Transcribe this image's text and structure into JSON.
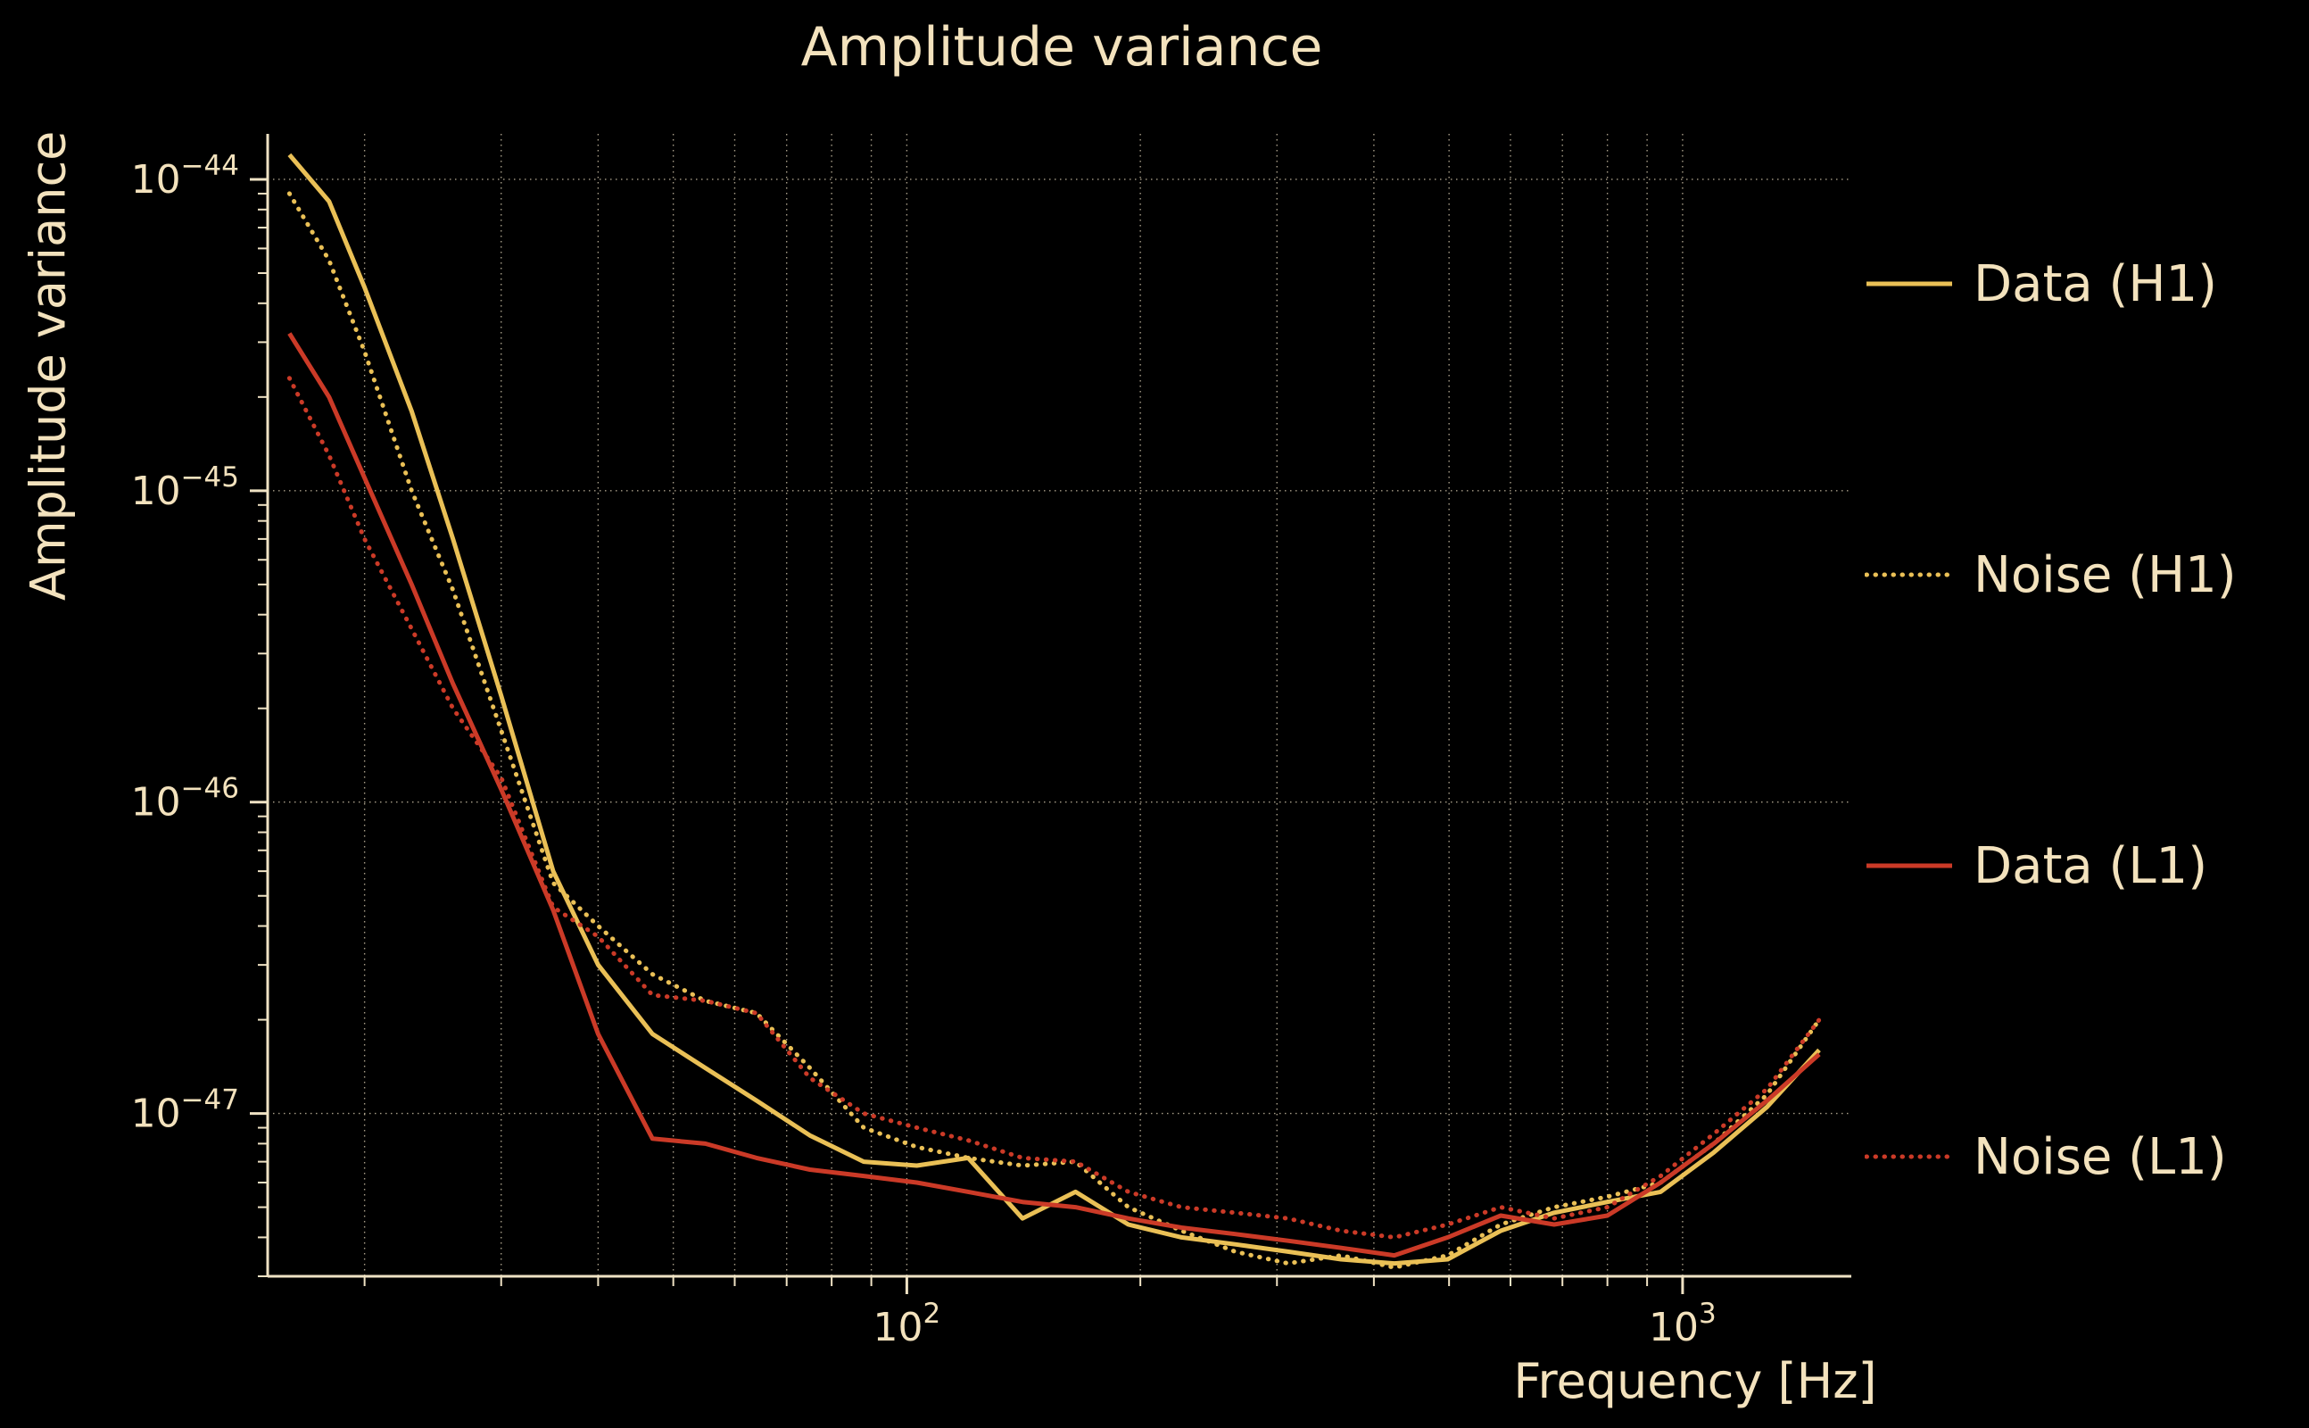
{
  "chart_data": {
    "type": "line",
    "title": "Amplitude variance",
    "xlabel": "Frequency [Hz]",
    "ylabel": "Amplitude variance",
    "xscale": "log",
    "yscale": "log",
    "xlim": [
      15,
      1650
    ],
    "ylim": [
      3e-48,
      1.4e-44
    ],
    "grid": "on",
    "legend_position": "right-outside",
    "colors": {
      "background": "#000000",
      "text": "#f3e2bd",
      "axis": "#efe2c4",
      "grid": "#efe2c4",
      "h1_yellow": "#eac056",
      "l1_red": "#cb3a27"
    },
    "x_ticks": [
      {
        "value": 100,
        "exp": "2"
      },
      {
        "value": 1000,
        "exp": "3"
      }
    ],
    "y_ticks": [
      {
        "value": 1e-44,
        "exp": "−44"
      },
      {
        "value": 1e-45,
        "exp": "−45"
      },
      {
        "value": 1e-46,
        "exp": "−46"
      },
      {
        "value": 1e-47,
        "exp": "−47"
      }
    ],
    "x": [
      16,
      18,
      20,
      23,
      26,
      30,
      35,
      40,
      47,
      55,
      64,
      75,
      88,
      103,
      120,
      141,
      165,
      193,
      226,
      265,
      310,
      363,
      425,
      498,
      583,
      683,
      800,
      937,
      1097,
      1285,
      1500
    ],
    "series": [
      {
        "name": "Data (H1)",
        "color": "#eac056",
        "style": "solid",
        "values": [
          1.2e-44,
          8.5e-45,
          4.5e-45,
          1.8e-45,
          7e-46,
          2.2e-46,
          6e-47,
          3e-47,
          1.8e-47,
          1.4e-47,
          1.1e-47,
          8.5e-48,
          7e-48,
          6.8e-48,
          7.2e-48,
          4.6e-48,
          5.6e-48,
          4.4e-48,
          4e-48,
          3.8e-48,
          3.6e-48,
          3.4e-48,
          3.3e-48,
          3.4e-48,
          4.2e-48,
          4.8e-48,
          5.2e-48,
          5.6e-48,
          7.5e-48,
          1.05e-47,
          1.6e-47
        ]
      },
      {
        "name": "Noise (H1)",
        "color": "#eac056",
        "style": "dotted",
        "values": [
          9e-45,
          5.5e-45,
          2.8e-45,
          1e-45,
          4.8e-46,
          1.7e-46,
          5.5e-47,
          4e-47,
          2.8e-47,
          2.3e-47,
          2.1e-47,
          1.4e-47,
          9e-48,
          7.8e-48,
          7.2e-48,
          6.8e-48,
          7e-48,
          5e-48,
          4.2e-48,
          3.6e-48,
          3.3e-48,
          3.5e-48,
          3.2e-48,
          3.5e-48,
          4.4e-48,
          5e-48,
          5.4e-48,
          6e-48,
          8e-48,
          1.15e-47,
          2e-47
        ]
      },
      {
        "name": "Data (L1)",
        "color": "#cb3a27",
        "style": "solid",
        "values": [
          3.2e-45,
          2e-45,
          1.1e-45,
          5e-46,
          2.4e-46,
          1.1e-46,
          4.5e-47,
          1.8e-47,
          8.3e-48,
          8e-48,
          7.2e-48,
          6.6e-48,
          6.3e-48,
          6e-48,
          5.6e-48,
          5.2e-48,
          5e-48,
          4.6e-48,
          4.3e-48,
          4.1e-48,
          3.9e-48,
          3.7e-48,
          3.5e-48,
          4e-48,
          4.7e-48,
          4.4e-48,
          4.7e-48,
          6e-48,
          8e-48,
          1.1e-47,
          1.55e-47
        ]
      },
      {
        "name": "Noise (L1)",
        "color": "#cb3a27",
        "style": "dotted",
        "values": [
          2.3e-45,
          1.3e-45,
          7e-46,
          3.6e-46,
          2e-46,
          1.2e-46,
          4.6e-47,
          3.7e-47,
          2.4e-47,
          2.3e-47,
          2.1e-47,
          1.3e-47,
          1e-47,
          9e-48,
          8.2e-48,
          7.2e-48,
          7e-48,
          5.6e-48,
          5e-48,
          4.8e-48,
          4.6e-48,
          4.2e-48,
          4e-48,
          4.4e-48,
          5e-48,
          4.6e-48,
          5e-48,
          6.3e-48,
          8.6e-48,
          1.2e-47,
          2e-47
        ]
      }
    ]
  }
}
